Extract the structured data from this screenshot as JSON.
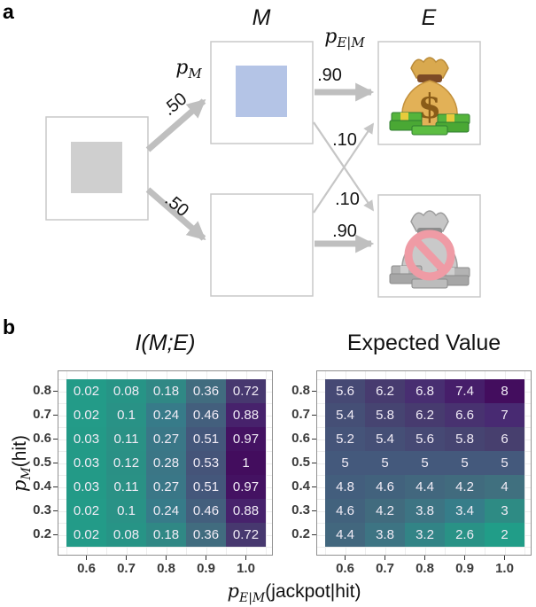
{
  "figure": {
    "panel_a_label": "a",
    "panel_b_label": "b"
  },
  "panel_a": {
    "m_header": "M",
    "e_header": "E",
    "p_m": {
      "base": "p",
      "sub": "M"
    },
    "p_e_m": {
      "base": "p",
      "sub": "E|M"
    },
    "prob_hit": ".50",
    "prob_miss": ".50",
    "prob_jackpot_given_hit": ".90",
    "prob_nothing_given_hit": ".10",
    "prob_jackpot_given_miss": ".10",
    "prob_nothing_given_miss": ".90",
    "icons": {
      "jackpot": "money-bag-with-cash-icon",
      "dollar_glyph": "$",
      "nothing": "no-money-bag-icon"
    },
    "node_colors": {
      "start_fill": "#cfcfcf",
      "hit_fill": "#b4c4e6",
      "box_border": "#c9c9c9",
      "arrow": "#bfbfbf"
    }
  },
  "panel_b": {
    "x_axis": {
      "base": "p",
      "sub": "E|M",
      "rest": "(jackpot|hit)"
    },
    "y_axis": {
      "base": "p",
      "sub": "M",
      "rest": "(hit)"
    }
  },
  "chart_data": [
    {
      "type": "heatmap",
      "title": "I(M;E)",
      "x_tick_labels": [
        "0.6",
        "0.7",
        "0.8",
        "0.9",
        "1.0"
      ],
      "y_tick_labels": [
        "0.8",
        "0.7",
        "0.6",
        "0.5",
        "0.4",
        "0.3",
        "0.2"
      ],
      "xlabel": "p_E|M(jackpot|hit)",
      "ylabel": "p_M(hit)",
      "values": [
        [
          0.02,
          0.08,
          0.18,
          0.36,
          0.72
        ],
        [
          0.02,
          0.1,
          0.24,
          0.46,
          0.88
        ],
        [
          0.03,
          0.11,
          0.27,
          0.51,
          0.97
        ],
        [
          0.03,
          0.12,
          0.28,
          0.53,
          1
        ],
        [
          0.03,
          0.11,
          0.27,
          0.51,
          0.97
        ],
        [
          0.02,
          0.1,
          0.24,
          0.46,
          0.88
        ],
        [
          0.02,
          0.08,
          0.18,
          0.36,
          0.72
        ]
      ],
      "color_domain": [
        0,
        1
      ],
      "colormap": "reversed-viridis (low=teal #219d88, high=dark purple #430d5e)",
      "grid": true,
      "legend": "none"
    },
    {
      "type": "heatmap",
      "title": "Expected Value",
      "x_tick_labels": [
        "0.6",
        "0.7",
        "0.8",
        "0.9",
        "1.0"
      ],
      "y_tick_labels": [
        "0.8",
        "0.7",
        "0.6",
        "0.5",
        "0.4",
        "0.3",
        "0.2"
      ],
      "xlabel": "p_E|M(jackpot|hit)",
      "ylabel": "p_M(hit)",
      "values": [
        [
          5.6,
          6.2,
          6.8,
          7.4,
          8
        ],
        [
          5.4,
          5.8,
          6.2,
          6.6,
          7
        ],
        [
          5.2,
          5.4,
          5.6,
          5.8,
          6
        ],
        [
          5,
          5,
          5,
          5,
          5
        ],
        [
          4.8,
          4.6,
          4.4,
          4.2,
          4
        ],
        [
          4.6,
          4.2,
          3.8,
          3.4,
          3
        ],
        [
          4.4,
          3.8,
          3.2,
          2.6,
          2
        ]
      ],
      "color_domain": [
        2,
        8
      ],
      "colormap": "reversed-viridis (low=teal #219d88, high=dark purple #430d5e)",
      "grid": true,
      "legend": "none"
    }
  ]
}
